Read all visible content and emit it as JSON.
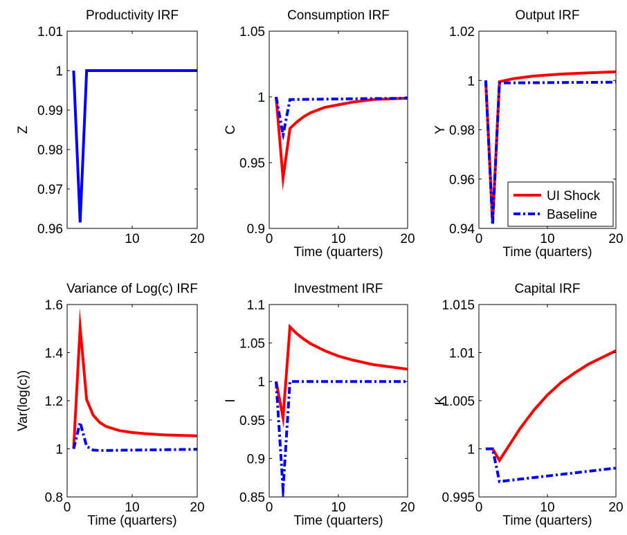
{
  "colors": {
    "ui_shock": "#ff0000",
    "baseline": "#0000ff",
    "axes": "#000000",
    "background": "#ffffff"
  },
  "chart_data": [
    {
      "type": "line",
      "title": "Productivity IRF",
      "xlabel": "",
      "ylabel": "Z",
      "xlim": [
        0,
        20
      ],
      "ylim": [
        0.96,
        1.01
      ],
      "xticks": [
        "10",
        "20"
      ],
      "yticks": [
        "0.96",
        "0.97",
        "0.98",
        "0.99",
        "1",
        "1.01"
      ],
      "series": [
        {
          "style": "baseline",
          "x": [
            1,
            2,
            3,
            20
          ],
          "y": [
            1.0,
            0.9615,
            1.0,
            1.0
          ]
        }
      ]
    },
    {
      "type": "line",
      "title": "Consumption IRF",
      "xlabel": "Time (quarters)",
      "ylabel": "C",
      "xlim": [
        0,
        20
      ],
      "ylim": [
        0.9,
        1.05
      ],
      "xticks": [
        "0",
        "10",
        "20"
      ],
      "yticks": [
        "0.9",
        "0.95",
        "1",
        "1.05"
      ],
      "series": [
        {
          "style": "ui_shock",
          "x": [
            1,
            2,
            3,
            4,
            5,
            6,
            8,
            10,
            12,
            15,
            20
          ],
          "y": [
            1.0,
            0.938,
            0.976,
            0.981,
            0.985,
            0.988,
            0.992,
            0.994,
            0.996,
            0.998,
            0.999
          ]
        },
        {
          "style": "baseline",
          "x": [
            1,
            2,
            3,
            20
          ],
          "y": [
            1.0,
            0.971,
            0.998,
            0.999
          ]
        }
      ]
    },
    {
      "type": "line",
      "title": "Output IRF",
      "xlabel": "Time (quarters)",
      "ylabel": "Y",
      "xlim": [
        0,
        20
      ],
      "ylim": [
        0.94,
        1.02
      ],
      "xticks": [
        "0",
        "10",
        "20"
      ],
      "yticks": [
        "0.94",
        "0.96",
        "0.98",
        "1",
        "1.02"
      ],
      "legend": {
        "position": "lower-right",
        "entries": [
          "UI Shock",
          "Baseline"
        ]
      },
      "series": [
        {
          "style": "ui_shock",
          "x": [
            1,
            2,
            3,
            5,
            8,
            12,
            16,
            20
          ],
          "y": [
            1.0,
            0.942,
            0.9995,
            1.0007,
            1.0018,
            1.0026,
            1.0031,
            1.0035
          ]
        },
        {
          "style": "baseline",
          "x": [
            1,
            2,
            3,
            20
          ],
          "y": [
            1.0,
            0.9415,
            0.999,
            0.9993
          ]
        }
      ]
    },
    {
      "type": "line",
      "title": "Variance of Log(c) IRF",
      "xlabel": "Time (quarters)",
      "ylabel": "Var(log(c))",
      "xlim": [
        0,
        20
      ],
      "ylim": [
        0.8,
        1.6
      ],
      "xticks": [
        "0",
        "10",
        "20"
      ],
      "yticks": [
        "0.8",
        "1",
        "1.2",
        "1.4",
        "1.6"
      ],
      "series": [
        {
          "style": "ui_shock",
          "x": [
            1,
            2,
            3,
            4,
            5,
            6,
            8,
            10,
            12,
            15,
            20
          ],
          "y": [
            1.0,
            1.505,
            1.205,
            1.14,
            1.11,
            1.093,
            1.076,
            1.068,
            1.063,
            1.058,
            1.054
          ]
        },
        {
          "style": "baseline",
          "x": [
            1,
            2,
            3,
            4,
            5,
            20
          ],
          "y": [
            1.0,
            1.11,
            1.01,
            0.995,
            0.993,
            0.998
          ]
        }
      ]
    },
    {
      "type": "line",
      "title": "Investment IRF",
      "xlabel": "Time (quarters)",
      "ylabel": "I",
      "xlim": [
        0,
        20
      ],
      "ylim": [
        0.85,
        1.1
      ],
      "xticks": [
        "0",
        "10",
        "20"
      ],
      "yticks": [
        "0.85",
        "0.9",
        "0.95",
        "1",
        "1.05",
        "1.1"
      ],
      "series": [
        {
          "style": "ui_shock",
          "x": [
            1,
            2,
            3,
            4,
            5,
            6,
            8,
            10,
            12,
            15,
            20
          ],
          "y": [
            1.0,
            0.953,
            1.071,
            1.062,
            1.055,
            1.049,
            1.04,
            1.033,
            1.028,
            1.022,
            1.016
          ]
        },
        {
          "style": "baseline",
          "x": [
            1,
            2,
            3,
            20
          ],
          "y": [
            1.0,
            0.86,
            1.0,
            1.0
          ]
        }
      ]
    },
    {
      "type": "line",
      "title": "Capital IRF",
      "xlabel": "Time (quarters)",
      "ylabel": "K",
      "xlim": [
        0,
        20
      ],
      "ylim": [
        0.995,
        1.015
      ],
      "xticks": [
        "0",
        "10",
        "20"
      ],
      "yticks": [
        "0.995",
        "1",
        "1.005",
        "1.01",
        "1.015"
      ],
      "series": [
        {
          "style": "ui_shock",
          "x": [
            1,
            2,
            3,
            4,
            5,
            6,
            8,
            10,
            12,
            14,
            16,
            18,
            20
          ],
          "y": [
            1.0,
            1.0,
            0.9988,
            0.9999,
            1.001,
            1.0021,
            1.004,
            1.0056,
            1.0069,
            1.0079,
            1.0088,
            1.0095,
            1.0102
          ]
        },
        {
          "style": "baseline",
          "x": [
            1,
            2,
            3,
            20
          ],
          "y": [
            1.0,
            1.0,
            0.9966,
            0.998
          ]
        }
      ]
    }
  ]
}
